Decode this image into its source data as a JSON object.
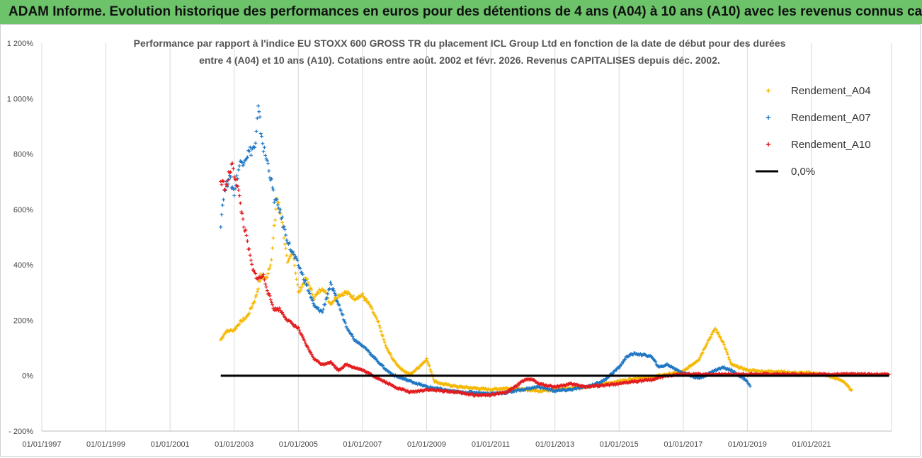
{
  "banner": {
    "title": "ADAM Informe. Evolution historique des performances en euros pour des détentions de 4 ans (A04) à 10 ans (A10) avec les revenus connus capitalisés"
  },
  "chart_data": {
    "type": "scatter",
    "title_lines": [
      "Performance par rapport à l'indice EU STOXX 600 GROSS TR  du placement ICL Group Ltd en fonction de la date de début pour des durées",
      "entre 4 (A04) et 10 ans (A10). Cotations entre août. 2002 et févr. 2026. Revenus CAPITALISES depuis déc. 2002."
    ],
    "xlabel": "",
    "ylabel": "",
    "x_range": [
      "1997-01-01",
      "2023-07-01"
    ],
    "ylim": [
      -200,
      1200
    ],
    "y_ticks": [
      -200,
      0,
      200,
      400,
      600,
      800,
      1000,
      1200
    ],
    "y_tick_labels": [
      "- 200%",
      "0%",
      "200%",
      "400%",
      "600%",
      "800%",
      "1 000%",
      "1 200%"
    ],
    "x_ticks": [
      "1997-01-01",
      "1999-01-01",
      "2001-01-01",
      "2003-01-01",
      "2005-01-01",
      "2007-01-01",
      "2009-01-01",
      "2011-01-01",
      "2013-01-01",
      "2015-01-01",
      "2017-01-01",
      "2019-01-01",
      "2021-01-01"
    ],
    "x_tick_labels": [
      "01/01/1997",
      "01/01/1999",
      "01/01/2001",
      "01/01/2003",
      "01/01/2005",
      "01/01/2007",
      "01/01/2009",
      "01/01/2011",
      "01/01/2013",
      "01/01/2015",
      "01/01/2017",
      "01/01/2019",
      "01/01/2021"
    ],
    "grid": "vertical",
    "legend_position": "top-right",
    "series": [
      {
        "name": "Rendement_A04",
        "color": "#f5b800",
        "points": [
          [
            "2002-08-01",
            130
          ],
          [
            "2002-10-01",
            160
          ],
          [
            "2003-01-01",
            165
          ],
          [
            "2003-03-01",
            190
          ],
          [
            "2003-06-01",
            215
          ],
          [
            "2003-09-01",
            280
          ],
          [
            "2003-11-01",
            360
          ],
          [
            "2004-01-01",
            350
          ],
          [
            "2004-03-01",
            420
          ],
          [
            "2004-05-01",
            640
          ],
          [
            "2004-07-01",
            560
          ],
          [
            "2004-09-01",
            400
          ],
          [
            "2004-11-01",
            450
          ],
          [
            "2005-01-01",
            300
          ],
          [
            "2005-04-01",
            350
          ],
          [
            "2005-07-01",
            280
          ],
          [
            "2005-10-01",
            320
          ],
          [
            "2006-01-01",
            260
          ],
          [
            "2006-04-01",
            290
          ],
          [
            "2006-07-01",
            300
          ],
          [
            "2006-10-01",
            280
          ],
          [
            "2007-01-01",
            290
          ],
          [
            "2007-04-01",
            250
          ],
          [
            "2007-07-01",
            190
          ],
          [
            "2007-10-01",
            100
          ],
          [
            "2008-01-01",
            50
          ],
          [
            "2008-04-01",
            20
          ],
          [
            "2008-07-01",
            5
          ],
          [
            "2008-10-01",
            30
          ],
          [
            "2009-01-01",
            60
          ],
          [
            "2009-04-01",
            -20
          ],
          [
            "2009-07-01",
            -30
          ],
          [
            "2010-01-01",
            -40
          ],
          [
            "2010-07-01",
            -45
          ],
          [
            "2011-01-01",
            -50
          ],
          [
            "2011-07-01",
            -45
          ],
          [
            "2012-01-01",
            -50
          ],
          [
            "2012-07-01",
            -55
          ],
          [
            "2013-01-01",
            -50
          ],
          [
            "2013-07-01",
            -45
          ],
          [
            "2014-01-01",
            -40
          ],
          [
            "2014-07-01",
            -30
          ],
          [
            "2015-01-01",
            -20
          ],
          [
            "2015-07-01",
            -10
          ],
          [
            "2016-01-01",
            -5
          ],
          [
            "2016-07-01",
            5
          ],
          [
            "2017-01-01",
            15
          ],
          [
            "2017-07-01",
            60
          ],
          [
            "2017-10-01",
            120
          ],
          [
            "2018-01-01",
            170
          ],
          [
            "2018-04-01",
            120
          ],
          [
            "2018-07-01",
            40
          ],
          [
            "2019-01-01",
            20
          ],
          [
            "2019-07-01",
            15
          ],
          [
            "2020-01-01",
            15
          ],
          [
            "2020-07-01",
            10
          ],
          [
            "2021-01-01",
            10
          ],
          [
            "2021-07-01",
            0
          ],
          [
            "2022-01-01",
            -20
          ],
          [
            "2022-04-01",
            -55
          ]
        ]
      },
      {
        "name": "Rendement_A07",
        "color": "#1f77c4",
        "points": [
          [
            "2002-08-01",
            550
          ],
          [
            "2002-09-01",
            650
          ],
          [
            "2002-11-01",
            720
          ],
          [
            "2003-01-01",
            660
          ],
          [
            "2003-03-01",
            760
          ],
          [
            "2003-06-01",
            800
          ],
          [
            "2003-09-01",
            830
          ],
          [
            "2003-10-01",
            960
          ],
          [
            "2003-12-01",
            820
          ],
          [
            "2004-02-01",
            750
          ],
          [
            "2004-04-01",
            640
          ],
          [
            "2004-06-01",
            600
          ],
          [
            "2004-08-01",
            520
          ],
          [
            "2004-10-01",
            460
          ],
          [
            "2005-01-01",
            400
          ],
          [
            "2005-04-01",
            330
          ],
          [
            "2005-07-01",
            250
          ],
          [
            "2005-10-01",
            230
          ],
          [
            "2006-01-01",
            330
          ],
          [
            "2006-04-01",
            260
          ],
          [
            "2006-07-01",
            180
          ],
          [
            "2006-10-01",
            130
          ],
          [
            "2007-01-01",
            110
          ],
          [
            "2007-04-01",
            80
          ],
          [
            "2007-07-01",
            50
          ],
          [
            "2007-10-01",
            20
          ],
          [
            "2008-01-01",
            0
          ],
          [
            "2008-07-01",
            -20
          ],
          [
            "2009-01-01",
            -40
          ],
          [
            "2009-07-01",
            -50
          ],
          [
            "2010-01-01",
            -60
          ],
          [
            "2010-07-01",
            -60
          ],
          [
            "2011-01-01",
            -65
          ],
          [
            "2011-07-01",
            -60
          ],
          [
            "2012-01-01",
            -50
          ],
          [
            "2012-07-01",
            -40
          ],
          [
            "2013-01-01",
            -55
          ],
          [
            "2013-07-01",
            -50
          ],
          [
            "2014-01-01",
            -40
          ],
          [
            "2014-07-01",
            -20
          ],
          [
            "2015-01-01",
            30
          ],
          [
            "2015-04-01",
            70
          ],
          [
            "2015-07-01",
            80
          ],
          [
            "2016-01-01",
            70
          ],
          [
            "2016-04-01",
            30
          ],
          [
            "2016-07-01",
            40
          ],
          [
            "2017-01-01",
            10
          ],
          [
            "2017-07-01",
            -10
          ],
          [
            "2018-01-01",
            20
          ],
          [
            "2018-04-01",
            30
          ],
          [
            "2018-07-01",
            20
          ],
          [
            "2019-01-01",
            -20
          ],
          [
            "2019-02-01",
            -40
          ]
        ]
      },
      {
        "name": "Rendement_A10",
        "color": "#e31a1c",
        "points": [
          [
            "2002-08-01",
            700
          ],
          [
            "2002-10-01",
            680
          ],
          [
            "2002-12-01",
            760
          ],
          [
            "2003-02-01",
            700
          ],
          [
            "2003-04-01",
            580
          ],
          [
            "2003-06-01",
            480
          ],
          [
            "2003-08-01",
            380
          ],
          [
            "2003-10-01",
            350
          ],
          [
            "2003-12-01",
            360
          ],
          [
            "2004-02-01",
            290
          ],
          [
            "2004-04-01",
            240
          ],
          [
            "2004-06-01",
            240
          ],
          [
            "2004-09-01",
            200
          ],
          [
            "2005-01-01",
            170
          ],
          [
            "2005-04-01",
            110
          ],
          [
            "2005-07-01",
            60
          ],
          [
            "2005-10-01",
            40
          ],
          [
            "2006-01-01",
            50
          ],
          [
            "2006-04-01",
            20
          ],
          [
            "2006-07-01",
            40
          ],
          [
            "2007-01-01",
            20
          ],
          [
            "2007-07-01",
            -10
          ],
          [
            "2008-01-01",
            -40
          ],
          [
            "2008-07-01",
            -60
          ],
          [
            "2009-01-01",
            -50
          ],
          [
            "2009-07-01",
            -55
          ],
          [
            "2010-01-01",
            -60
          ],
          [
            "2010-07-01",
            -70
          ],
          [
            "2011-01-01",
            -70
          ],
          [
            "2011-07-01",
            -60
          ],
          [
            "2012-01-01",
            -20
          ],
          [
            "2012-04-01",
            -10
          ],
          [
            "2012-07-01",
            -30
          ],
          [
            "2013-01-01",
            -40
          ],
          [
            "2013-07-01",
            -30
          ],
          [
            "2014-01-01",
            -40
          ],
          [
            "2014-07-01",
            -35
          ],
          [
            "2015-01-01",
            -30
          ],
          [
            "2015-07-01",
            -20
          ],
          [
            "2016-01-01",
            -15
          ],
          [
            "2016-07-01",
            0
          ],
          [
            "2017-01-01",
            5
          ],
          [
            "2018-01-01",
            5
          ],
          [
            "2019-01-01",
            5
          ],
          [
            "2020-01-01",
            5
          ],
          [
            "2021-01-01",
            5
          ],
          [
            "2022-01-01",
            5
          ],
          [
            "2023-06-01",
            5
          ]
        ]
      },
      {
        "name": "0,0%",
        "color": "#000000",
        "line": true,
        "points": [
          [
            "2002-08-01",
            0
          ],
          [
            "2023-06-01",
            0
          ]
        ]
      }
    ]
  }
}
